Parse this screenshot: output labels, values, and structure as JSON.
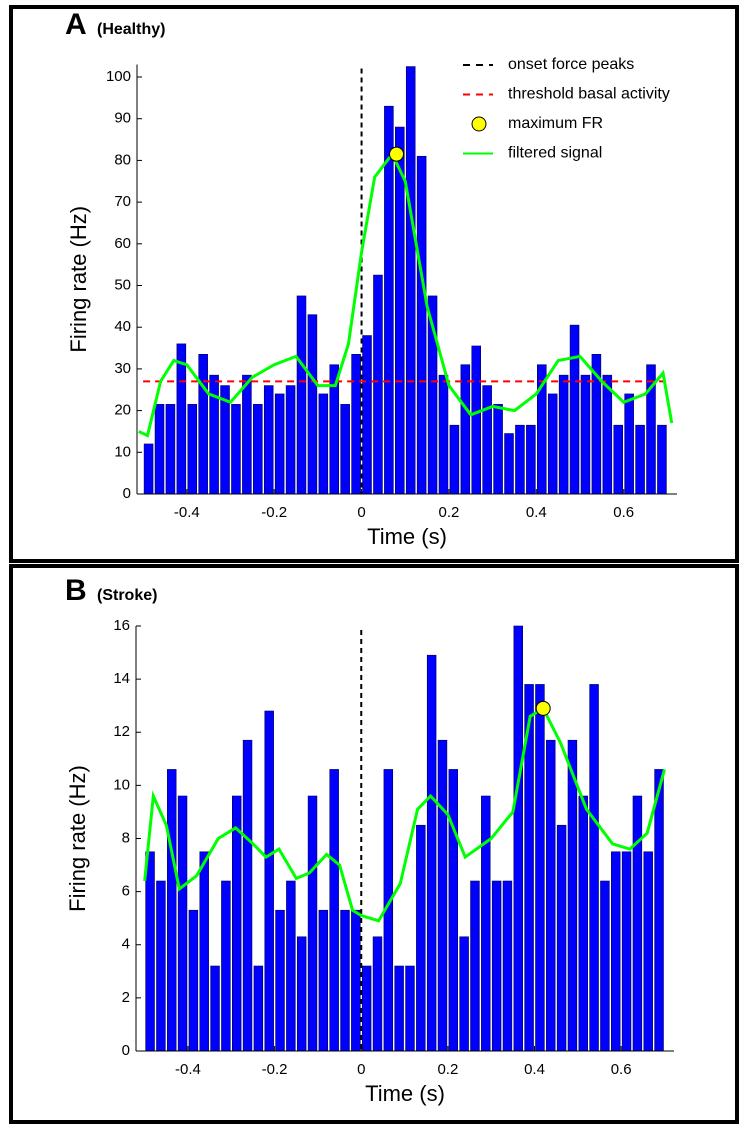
{
  "chart_data": [
    {
      "type": "histogram",
      "title": "A",
      "subtitle": "(Healthy)",
      "xlabel": "Time (s)",
      "ylabel": "Firing rate (Hz)",
      "bins": [
        -0.5,
        -0.475,
        -0.45,
        -0.425,
        -0.4,
        -0.375,
        -0.35,
        -0.325,
        -0.3,
        -0.275,
        -0.25,
        -0.225,
        -0.2,
        -0.175,
        -0.15,
        -0.125,
        -0.1,
        -0.075,
        -0.05,
        -0.025,
        0,
        0.025,
        0.05,
        0.075,
        0.1,
        0.125,
        0.15,
        0.175,
        0.2,
        0.225,
        0.25,
        0.275,
        0.3,
        0.325,
        0.35,
        0.375,
        0.4,
        0.425,
        0.45,
        0.475,
        0.5,
        0.525,
        0.55,
        0.575,
        0.6,
        0.625,
        0.65,
        0.675,
        0.7
      ],
      "counts": [
        12,
        21.5,
        21.5,
        36,
        21.5,
        33.5,
        28.5,
        26,
        21.5,
        28.5,
        21.5,
        26,
        24,
        26,
        47.5,
        43,
        24,
        31,
        21.5,
        33.5,
        38,
        52.5,
        93,
        88,
        102.5,
        81,
        47.5,
        28.5,
        16.5,
        31,
        35.5,
        26,
        21.5,
        14.5,
        16.5,
        16.5,
        31,
        24,
        28.5,
        40.5,
        28.5,
        33.5,
        28.5,
        16.5,
        24,
        16.5,
        31,
        16.5
      ],
      "color": "#0000ff",
      "xlim": [
        -0.514,
        0.722
      ],
      "ylim": [
        0,
        103
      ],
      "xticks": [
        -0.4,
        -0.2,
        0,
        0.2,
        0.4,
        0.6
      ],
      "yticks": [
        0,
        10,
        20,
        30,
        40,
        50,
        60,
        70,
        80,
        90,
        100
      ],
      "series": [
        {
          "type": "vline",
          "name": "onset force peaks",
          "color": "#000000",
          "x": 0
        },
        {
          "type": "hline",
          "name": "threshold basal activity",
          "color": "#ff0000",
          "y": 27
        },
        {
          "type": "marker",
          "name": "maximum FR",
          "color": "#ffff00",
          "x": 0.08,
          "values": 81.5
        },
        {
          "type": "line",
          "name": "filtered signal",
          "color": "#00ff00",
          "x": [
            -0.51,
            -0.49,
            -0.46,
            -0.43,
            -0.4,
            -0.35,
            -0.3,
            -0.25,
            -0.2,
            -0.15,
            -0.1,
            -0.06,
            -0.03,
            0,
            0.03,
            0.07,
            0.1,
            0.15,
            0.2,
            0.25,
            0.3,
            0.35,
            0.4,
            0.45,
            0.5,
            0.55,
            0.6,
            0.65,
            0.69,
            0.71
          ],
          "values": [
            15,
            14,
            27,
            32,
            31,
            24,
            22,
            28,
            31,
            33,
            26,
            26,
            36,
            58,
            76,
            81.5,
            75,
            45,
            26,
            19,
            21,
            20,
            24,
            32,
            33,
            27,
            22,
            24,
            29,
            17
          ]
        }
      ]
    },
    {
      "type": "histogram",
      "title": "B",
      "subtitle": "(Stroke)",
      "xlabel": "Time (s)",
      "ylabel": "Firing rate (Hz)",
      "bins": [
        -0.5,
        -0.475,
        -0.45,
        -0.425,
        -0.4,
        -0.375,
        -0.35,
        -0.325,
        -0.3,
        -0.275,
        -0.25,
        -0.225,
        -0.2,
        -0.175,
        -0.15,
        -0.125,
        -0.1,
        -0.075,
        -0.05,
        -0.025,
        0,
        0.025,
        0.05,
        0.075,
        0.1,
        0.125,
        0.15,
        0.175,
        0.2,
        0.225,
        0.25,
        0.275,
        0.3,
        0.325,
        0.35,
        0.375,
        0.4,
        0.425,
        0.45,
        0.475,
        0.5,
        0.525,
        0.55,
        0.575,
        0.6,
        0.625,
        0.65,
        0.675,
        0.7
      ],
      "counts": [
        7.5,
        6.4,
        10.6,
        9.6,
        5.3,
        7.5,
        3.2,
        6.4,
        9.6,
        11.7,
        3.2,
        12.8,
        5.3,
        6.4,
        4.3,
        9.6,
        5.3,
        10.6,
        5.3,
        5.3,
        3.2,
        4.3,
        10.6,
        3.2,
        3.2,
        8.5,
        14.9,
        11.7,
        10.6,
        4.3,
        6.4,
        9.6,
        6.4,
        6.4,
        16,
        13.8,
        13.8,
        11.7,
        8.5,
        11.7,
        9.6,
        13.8,
        6.4,
        7.5,
        7.5,
        9.6,
        7.5,
        10.6
      ],
      "color": "#0000ff",
      "xlim": [
        -0.52,
        0.722
      ],
      "ylim": [
        0,
        16
      ],
      "xticks": [
        -0.4,
        -0.2,
        0,
        0.2,
        0.4,
        0.6
      ],
      "yticks": [
        0,
        2,
        4,
        6,
        8,
        10,
        12,
        14,
        16
      ],
      "series": [
        {
          "type": "vline",
          "color": "#000000",
          "x": 0
        },
        {
          "type": "marker",
          "color": "#ffff00",
          "x": 0.42,
          "values": 12.9
        },
        {
          "type": "line",
          "color": "#00ff00",
          "x": [
            -0.5,
            -0.48,
            -0.45,
            -0.42,
            -0.38,
            -0.33,
            -0.29,
            -0.25,
            -0.22,
            -0.19,
            -0.15,
            -0.12,
            -0.08,
            -0.05,
            -0.02,
            0,
            0.04,
            0.09,
            0.13,
            0.16,
            0.2,
            0.24,
            0.3,
            0.35,
            0.39,
            0.42,
            0.46,
            0.52,
            0.58,
            0.62,
            0.66,
            0.7
          ],
          "values": [
            6.4,
            9.6,
            8.5,
            6.1,
            6.6,
            8,
            8.4,
            7.8,
            7.3,
            7.6,
            6.5,
            6.7,
            7.4,
            7,
            5.3,
            5.1,
            4.9,
            6.3,
            9.1,
            9.6,
            8.9,
            7.3,
            8,
            9,
            12.6,
            12.9,
            11.6,
            9.1,
            7.8,
            7.6,
            8.2,
            10.6
          ]
        }
      ]
    }
  ]
}
